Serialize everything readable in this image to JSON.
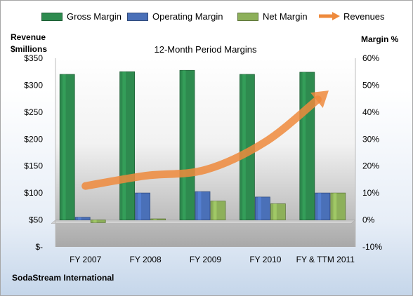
{
  "legend": [
    {
      "label": "Gross Margin",
      "color": "#2e8b4f"
    },
    {
      "label": "Operating Margin",
      "color": "#4a70b8"
    },
    {
      "label": "Net Margin",
      "color": "#8db05a"
    },
    {
      "label": "Revenues",
      "color": "#ee8a3c"
    }
  ],
  "axes": {
    "left_title": [
      "Revenue",
      "$millions"
    ],
    "right_title": "Margin %"
  },
  "company": "SodaStream International",
  "chart_data": {
    "type": "bar",
    "title": "12-Month Period Margins",
    "categories": [
      "FY 2007",
      "FY 2008",
      "FY 2009",
      "FY 2010",
      "FY & TTM 2011"
    ],
    "series": [
      {
        "name": "Gross Margin",
        "axis": "right",
        "color": "#2e8b4f",
        "values": [
          54.0,
          55.0,
          55.5,
          54.0,
          54.8
        ]
      },
      {
        "name": "Operating Margin",
        "axis": "right",
        "color": "#4a70b8",
        "values": [
          1.0,
          10.0,
          10.5,
          8.5,
          10.0
        ]
      },
      {
        "name": "Net Margin",
        "axis": "right",
        "color": "#8db05a",
        "values": [
          -1.0,
          0.4,
          7.0,
          6.0,
          10.0
        ]
      },
      {
        "name": "Revenues",
        "type": "line",
        "axis": "left",
        "color": "#ee8a3c",
        "values": [
          113,
          132,
          143,
          195,
          285
        ]
      }
    ],
    "y_left": {
      "ylim": [
        0,
        350
      ],
      "ticks": [
        0,
        50,
        100,
        150,
        200,
        250,
        300,
        350
      ],
      "tick_labels": [
        "$-",
        "$50",
        "$100",
        "$150",
        "$200",
        "$250",
        "$300",
        "$350"
      ]
    },
    "y_right": {
      "ylim": [
        -10,
        60
      ],
      "ticks": [
        -10,
        0,
        10,
        20,
        30,
        40,
        50,
        60
      ],
      "tick_labels": [
        "-10%",
        "0%",
        "10%",
        "20%",
        "30%",
        "40%",
        "50%",
        "60%"
      ]
    },
    "grid": false,
    "legend_position": "top"
  }
}
